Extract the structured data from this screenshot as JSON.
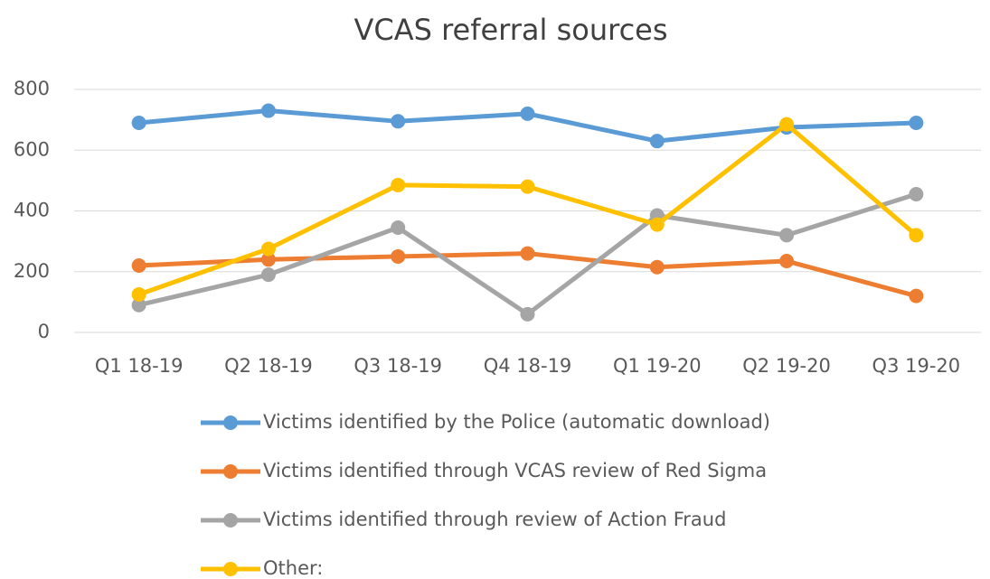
{
  "chart_data": {
    "type": "line",
    "title": "VCAS referral sources",
    "categories": [
      "Q1 18-19",
      "Q2 18-19",
      "Q3 18-19",
      "Q4 18-19",
      "Q1 19-20",
      "Q2 19-20",
      "Q3 19-20"
    ],
    "series": [
      {
        "name": "Victims identified by the Police (automatic download)",
        "color": "#5b9bd5",
        "values": [
          690,
          730,
          695,
          720,
          630,
          675,
          690
        ]
      },
      {
        "name": "Victims identified through VCAS review of Red Sigma",
        "color": "#ed7d31",
        "values": [
          220,
          240,
          250,
          260,
          215,
          235,
          120
        ]
      },
      {
        "name": "Victims identified through review of Action Fraud",
        "color": "#a5a5a5",
        "values": [
          90,
          190,
          345,
          60,
          385,
          320,
          455
        ]
      },
      {
        "name": "Other:",
        "color": "#ffc000",
        "values": [
          125,
          275,
          485,
          480,
          355,
          685,
          320
        ]
      }
    ],
    "ylim": [
      0,
      800
    ],
    "yticks": [
      0,
      200,
      400,
      600,
      800
    ],
    "grid": true,
    "legend": "bottom"
  }
}
